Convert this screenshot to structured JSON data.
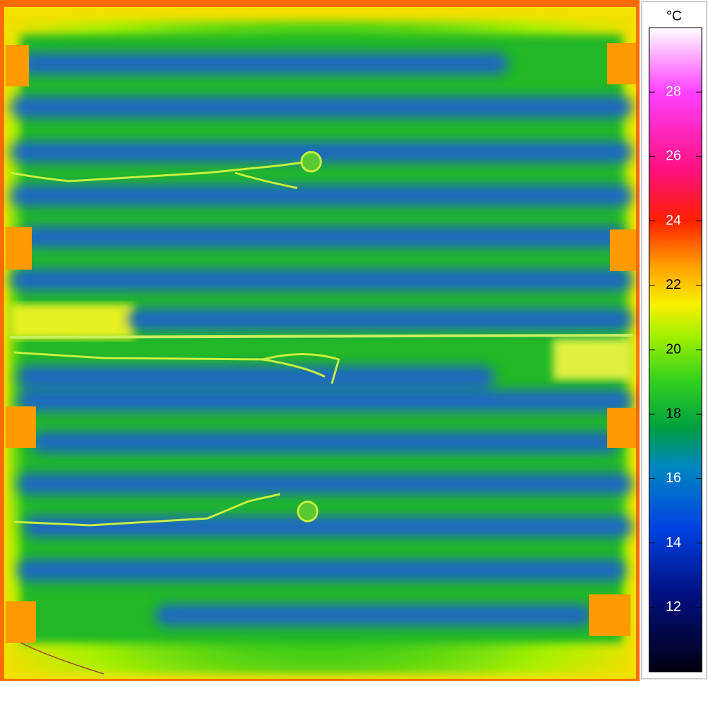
{
  "chart_data": {
    "type": "thermal-image",
    "unit": "°C",
    "ylim": [
      10,
      30
    ],
    "yticks": [
      12,
      14,
      16,
      18,
      20,
      22,
      24,
      26,
      28
    ]
  }
}
